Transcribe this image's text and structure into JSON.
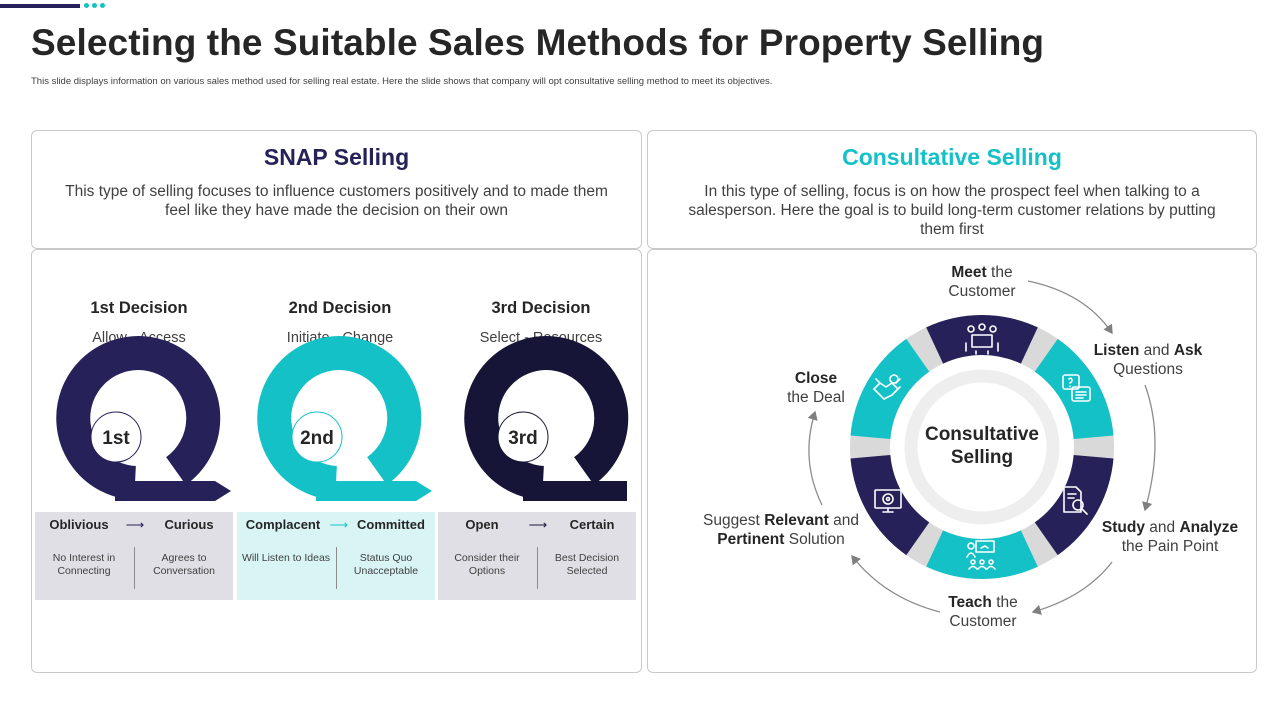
{
  "header": {
    "title": "Selecting the Suitable Sales Methods for Property Selling",
    "subtitle": "This slide displays information on various sales method used for selling real estate. Here the slide shows that company will opt consultative selling method to meet its objectives."
  },
  "colors": {
    "navy": "#262158",
    "teal": "#13c1c6",
    "dark": "#161537",
    "grey_card": "#e0dfe6",
    "teal_card": "#d8f4f5"
  },
  "snap": {
    "title": "SNAP Selling",
    "description": "This type of selling focuses to influence customers positively and to made them feel like they have made the decision on their own",
    "decisions": [
      {
        "title": "1st Decision",
        "subtitle": "Allow - Access",
        "badge": "1st",
        "color": "#262158",
        "card_color": "#e0dfe6",
        "from": "Oblivious",
        "to": "Curious",
        "from_note": "No Interest in Connecting",
        "to_note": "Agrees to Conversation"
      },
      {
        "title": "2nd Decision",
        "subtitle": "Initiate - Change",
        "badge": "2nd",
        "color": "#13c1c6",
        "card_color": "#d8f4f5",
        "from": "Complacent",
        "to": "Committed",
        "from_note": "Will Listen to Ideas",
        "to_note": "Status Quo Unacceptable"
      },
      {
        "title": "3rd Decision",
        "subtitle": "Select - Resources",
        "badge": "3rd",
        "color": "#161537",
        "card_color": "#e0dfe6",
        "from": "Open",
        "to": "Certain",
        "from_note": "Consider their Options",
        "to_note": "Best Decision Selected"
      }
    ]
  },
  "consultative": {
    "title": "Consultative Selling",
    "description": "In this type of selling, focus is on how the prospect feel when talking to a salesperson. Here the goal is to build long-term customer relations by putting them first",
    "center": {
      "line1": "Consultative",
      "line2": "Selling"
    },
    "steps": [
      {
        "bold": "Meet",
        "rest": "the",
        "line2": "Customer",
        "icon": "meeting-icon"
      },
      {
        "bold": "Listen",
        "mid": "and",
        "bold2": "Ask",
        "line2": "Questions",
        "icon": "questions-icon"
      },
      {
        "bold": "Study",
        "mid": "and",
        "bold2": "Analyze",
        "line2": "the Pain Point",
        "icon": "analyze-icon"
      },
      {
        "bold": "Teach",
        "rest": "the",
        "line2": "Customer",
        "icon": "teach-icon"
      },
      {
        "pre": "Suggest",
        "bold": "Relevant",
        "rest": "and",
        "bold2": "Pertinent",
        "rest2": "Solution",
        "icon": "solution-icon"
      },
      {
        "bold": "Close",
        "line2": "the Deal",
        "icon": "handshake-icon"
      }
    ]
  }
}
